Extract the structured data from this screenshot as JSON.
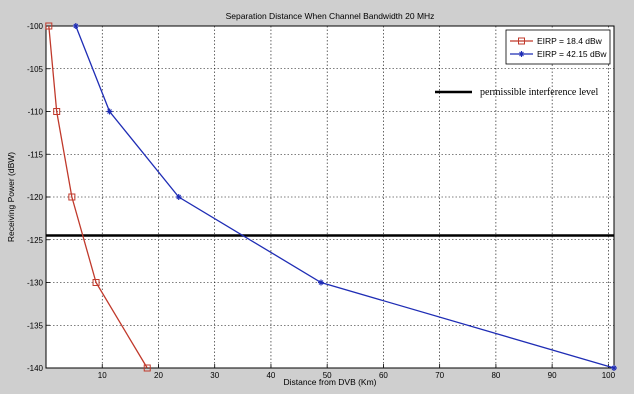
{
  "chart_data": {
    "type": "line",
    "title": "Separation Distance When Channel Bandwidth 20 MHz",
    "xlabel": "Distance from DVB (Km)",
    "ylabel": "Receiving Power (dBW)",
    "xlim": [
      0,
      101
    ],
    "ylim": [
      -140,
      -100
    ],
    "xticks": [
      10,
      20,
      30,
      40,
      50,
      60,
      70,
      80,
      90,
      100
    ],
    "yticks": [
      -100,
      -105,
      -110,
      -115,
      -120,
      -125,
      -130,
      -135,
      -140
    ],
    "grid": true,
    "legend_position": "top-right",
    "series": [
      {
        "name": "EIRP = 18.4 dBw",
        "color": "#c0392b",
        "marker": "square",
        "x": [
          0.5,
          1.9,
          4.6,
          8.9,
          18.0
        ],
        "y": [
          -100,
          -110,
          -120,
          -130,
          -140
        ]
      },
      {
        "name": "EIRP = 42.15 dBw",
        "color": "#1f2db5",
        "marker": "star",
        "x": [
          5.3,
          11.3,
          23.6,
          48.9,
          101.0
        ],
        "y": [
          -100,
          -110,
          -120,
          -130,
          -140
        ]
      }
    ],
    "reference_line": {
      "label": "permissible interference level",
      "y": -124.5,
      "color": "#000000"
    }
  }
}
